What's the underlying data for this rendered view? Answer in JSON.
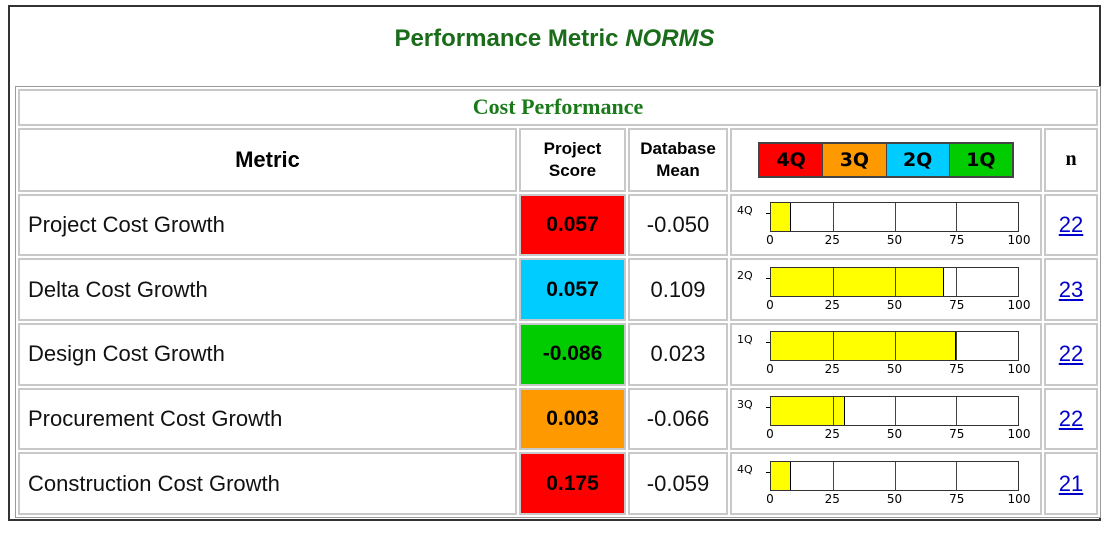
{
  "page": {
    "title_main": "Performance Metric ",
    "title_italic": "NORMS"
  },
  "section": {
    "title": "Cost Performance"
  },
  "headers": {
    "metric": "Metric",
    "score_line1": "Project",
    "score_line2": "Score",
    "mean_line1": "Database",
    "mean_line2": "Mean",
    "n": "n"
  },
  "legend": [
    {
      "label": "4Q",
      "color": "#ff0000"
    },
    {
      "label": "3Q",
      "color": "#ff9900"
    },
    {
      "label": "2Q",
      "color": "#00ccff"
    },
    {
      "label": "1Q",
      "color": "#00cc00"
    }
  ],
  "axis_ticks": [
    "0",
    "25",
    "50",
    "75",
    "100"
  ],
  "rows": [
    {
      "metric": "Project Cost Growth",
      "score": "0.057",
      "score_color": "#ff0000",
      "mean": "-0.050",
      "quartile": "4Q",
      "bar_value": 8,
      "n": "22"
    },
    {
      "metric": "Delta Cost Growth",
      "score": "0.057",
      "score_color": "#00ccff",
      "mean": "0.109",
      "quartile": "2Q",
      "bar_value": 70,
      "n": "23"
    },
    {
      "metric": "Design Cost Growth",
      "score": "-0.086",
      "score_color": "#00cc00",
      "mean": "0.023",
      "quartile": "1Q",
      "bar_value": 75,
      "n": "22"
    },
    {
      "metric": "Procurement Cost Growth",
      "score": "0.003",
      "score_color": "#ff9900",
      "mean": "-0.066",
      "quartile": "3Q",
      "bar_value": 30,
      "n": "22"
    },
    {
      "metric": "Construction Cost Growth",
      "score": "0.175",
      "score_color": "#ff0000",
      "mean": "-0.059",
      "quartile": "4Q",
      "bar_value": 8,
      "n": "21"
    }
  ]
}
